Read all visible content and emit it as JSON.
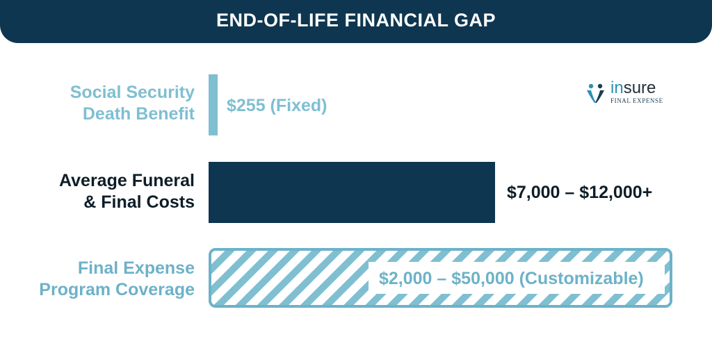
{
  "header": {
    "title": "END-OF-LIFE FINANCIAL GAP"
  },
  "logo": {
    "word_part1": "in",
    "word_part2": "sure",
    "subtitle": "FINAL EXPENSE"
  },
  "colors": {
    "header_bg": "#0e3650",
    "social_security": "#7fbfd1",
    "funeral_costs": "#0e3650",
    "program_coverage": "#6db2c8",
    "funeral_label": "#0e1e28"
  },
  "chart_data": {
    "type": "bar",
    "orientation": "horizontal",
    "title": "END-OF-LIFE FINANCIAL GAP",
    "categories": [
      "Social Security Death Benefit",
      "Average Funeral & Final Costs",
      "Final Expense Program Coverage"
    ],
    "category_lines": [
      [
        "Social Security",
        "Death Benefit"
      ],
      [
        "Average Funeral",
        "& Final Costs"
      ],
      [
        "Final Expense",
        "Program Coverage"
      ]
    ],
    "series": [
      {
        "values": [
          {
            "category": "Social Security Death Benefit",
            "min": 255,
            "max": 255,
            "label": "$255 (Fixed)",
            "fill": "solid"
          },
          {
            "category": "Average Funeral & Final Costs",
            "min": 7000,
            "max": 12000,
            "label": "$7,000 – $12,000+",
            "fill": "solid"
          },
          {
            "category": "Final Expense Program Coverage",
            "min": 2000,
            "max": 50000,
            "label": "$2,000 – $50,000 (Customizable)",
            "fill": "hatched"
          }
        ]
      }
    ],
    "xlabel": "",
    "ylabel": "",
    "grid": false,
    "legend": "none"
  }
}
